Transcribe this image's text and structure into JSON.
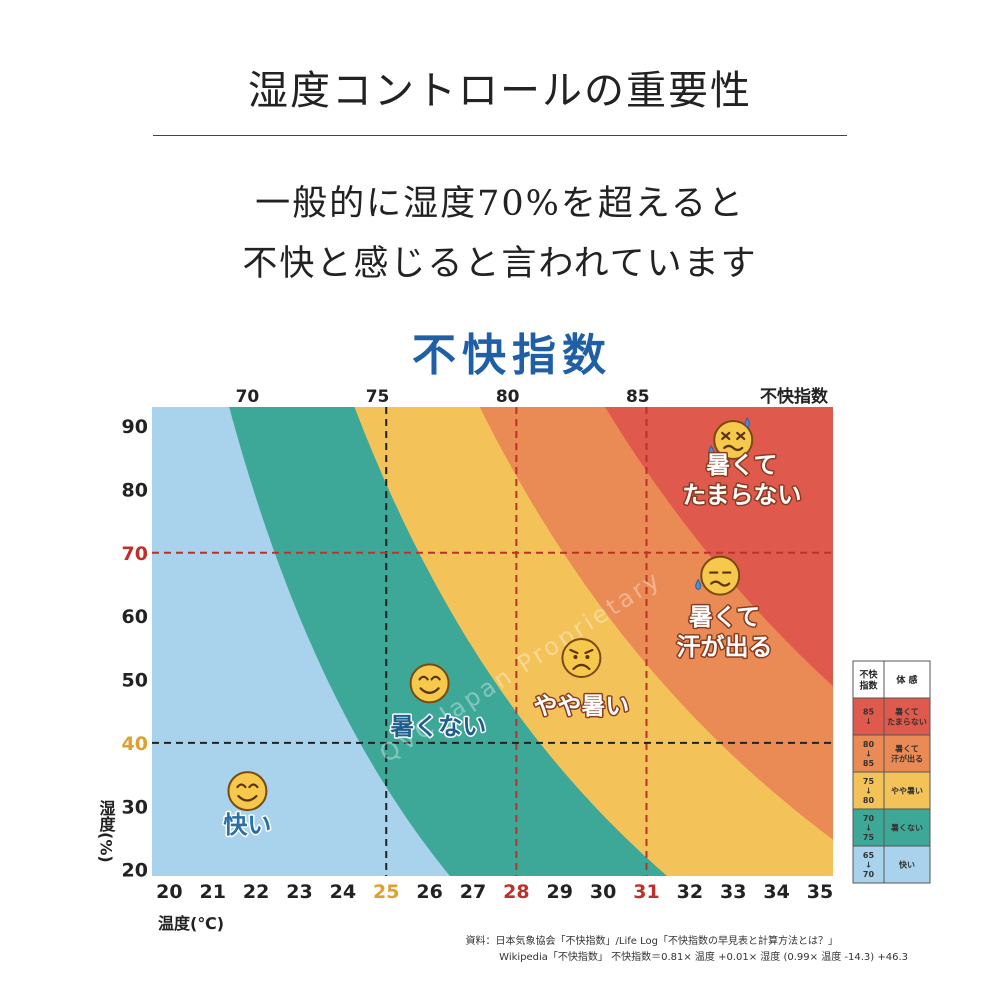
{
  "page": {
    "title": "湿度コントロールの重要性",
    "subtitle_line1": "一般的に湿度70%を超えると",
    "subtitle_line2": "不快と感じると言われています"
  },
  "chart_data": {
    "type": "heatmap",
    "title": "不快指数",
    "top_axis_label": "不快指数",
    "top_ticks": [
      {
        "label": "70",
        "temp": 21.8
      },
      {
        "label": "75",
        "temp": 24.8
      },
      {
        "label": "80",
        "temp": 27.8
      },
      {
        "label": "85",
        "temp": 30.8
      }
    ],
    "xlabel": "温度(℃)",
    "ylabel": "湿度(%)",
    "xlim": [
      19.6,
      35.3
    ],
    "ylim": [
      19,
      93
    ],
    "x_ticks": [
      20,
      21,
      22,
      23,
      24,
      25,
      26,
      27,
      28,
      29,
      30,
      31,
      32,
      33,
      34,
      35
    ],
    "y_ticks": [
      20,
      30,
      40,
      50,
      60,
      70,
      80,
      90
    ],
    "highlight_x": [
      {
        "value": 25,
        "color": "#e0a02a"
      },
      {
        "value": 28,
        "color": "#c0302b"
      },
      {
        "value": 31,
        "color": "#c0302b"
      }
    ],
    "highlight_y": [
      {
        "value": 70,
        "color": "#c0302b"
      },
      {
        "value": 40,
        "color": "#e0a02a"
      }
    ],
    "reference_lines": {
      "vertical": [
        25,
        28,
        31
      ],
      "horizontal": [
        40,
        70
      ],
      "colors": {
        "vertical_25": "#222222",
        "vertical_28": "#c0302b",
        "vertical_31": "#c0302b",
        "horizontal_70": "#c0302b",
        "horizontal_40": "#222222"
      }
    },
    "zones": [
      {
        "min_di": 0,
        "max_di": 70,
        "color": "#a9d3ec"
      },
      {
        "min_di": 70,
        "max_di": 75,
        "color": "#3ea898"
      },
      {
        "min_di": 75,
        "max_di": 80,
        "color": "#f3c35a"
      },
      {
        "min_di": 80,
        "max_di": 85,
        "color": "#ea8a55"
      },
      {
        "min_di": 85,
        "max_di": 100,
        "color": "#df5a4c"
      }
    ],
    "annotations": [
      {
        "text_lines": [
          "快い"
        ],
        "temp": 21.8,
        "hum": 25.8,
        "face": "smile",
        "face_temp": 21.8,
        "face_hum": 32.4,
        "color": "#2a6fa8"
      },
      {
        "text_lines": [
          "暑くない"
        ],
        "temp": 26.2,
        "hum": 41.3,
        "face": "smile",
        "face_temp": 26.0,
        "face_hum": 49.4,
        "color": "#1f5f8f"
      },
      {
        "text_lines": [
          "やや暑い"
        ],
        "temp": 29.5,
        "hum": 44.6,
        "face": "frown",
        "face_temp": 29.5,
        "face_hum": 53.4,
        "color": "#ffffff"
      },
      {
        "text_lines": [
          "暑くて",
          "汗が出る"
        ],
        "temp": 32.8,
        "hum": 58.6,
        "face": "sweat",
        "face_temp": 32.7,
        "face_hum": 66.4,
        "color": "#ffffff"
      },
      {
        "text_lines": [
          "暑くて",
          "たまらない"
        ],
        "temp": 33.2,
        "hum": 82.6,
        "face": "dizzy",
        "face_temp": 33.0,
        "face_hum": 87.8,
        "color": "#ffffff"
      }
    ],
    "watermark": "QVC Japan Proprietary",
    "legend": {
      "headers": [
        "不快\n指数",
        "体 感"
      ],
      "rows": [
        {
          "range": "85\n↓",
          "feeling": "暑くて\nたまらない",
          "color": "#df5a4c"
        },
        {
          "range": "80\n↓\n85",
          "feeling": "暑くて\n汗が出る",
          "color": "#ea8a55"
        },
        {
          "range": "75\n↓\n80",
          "feeling": "やや暑い",
          "color": "#f3c35a"
        },
        {
          "range": "70\n↓\n75",
          "feeling": "暑くない",
          "color": "#3ea898"
        },
        {
          "range": "65\n↓\n70",
          "feeling": "快い",
          "color": "#a9d3ec"
        }
      ]
    },
    "source_line1": "資料：日本気象協会「不快指数」/Life Log「不快指数の早見表と計算方法とは？」",
    "source_line2": "Wikipedia「不快指数」 不快指数＝0.81× 温度 +0.01× 湿度 (0.99× 温度 -14.3) +46.3"
  }
}
